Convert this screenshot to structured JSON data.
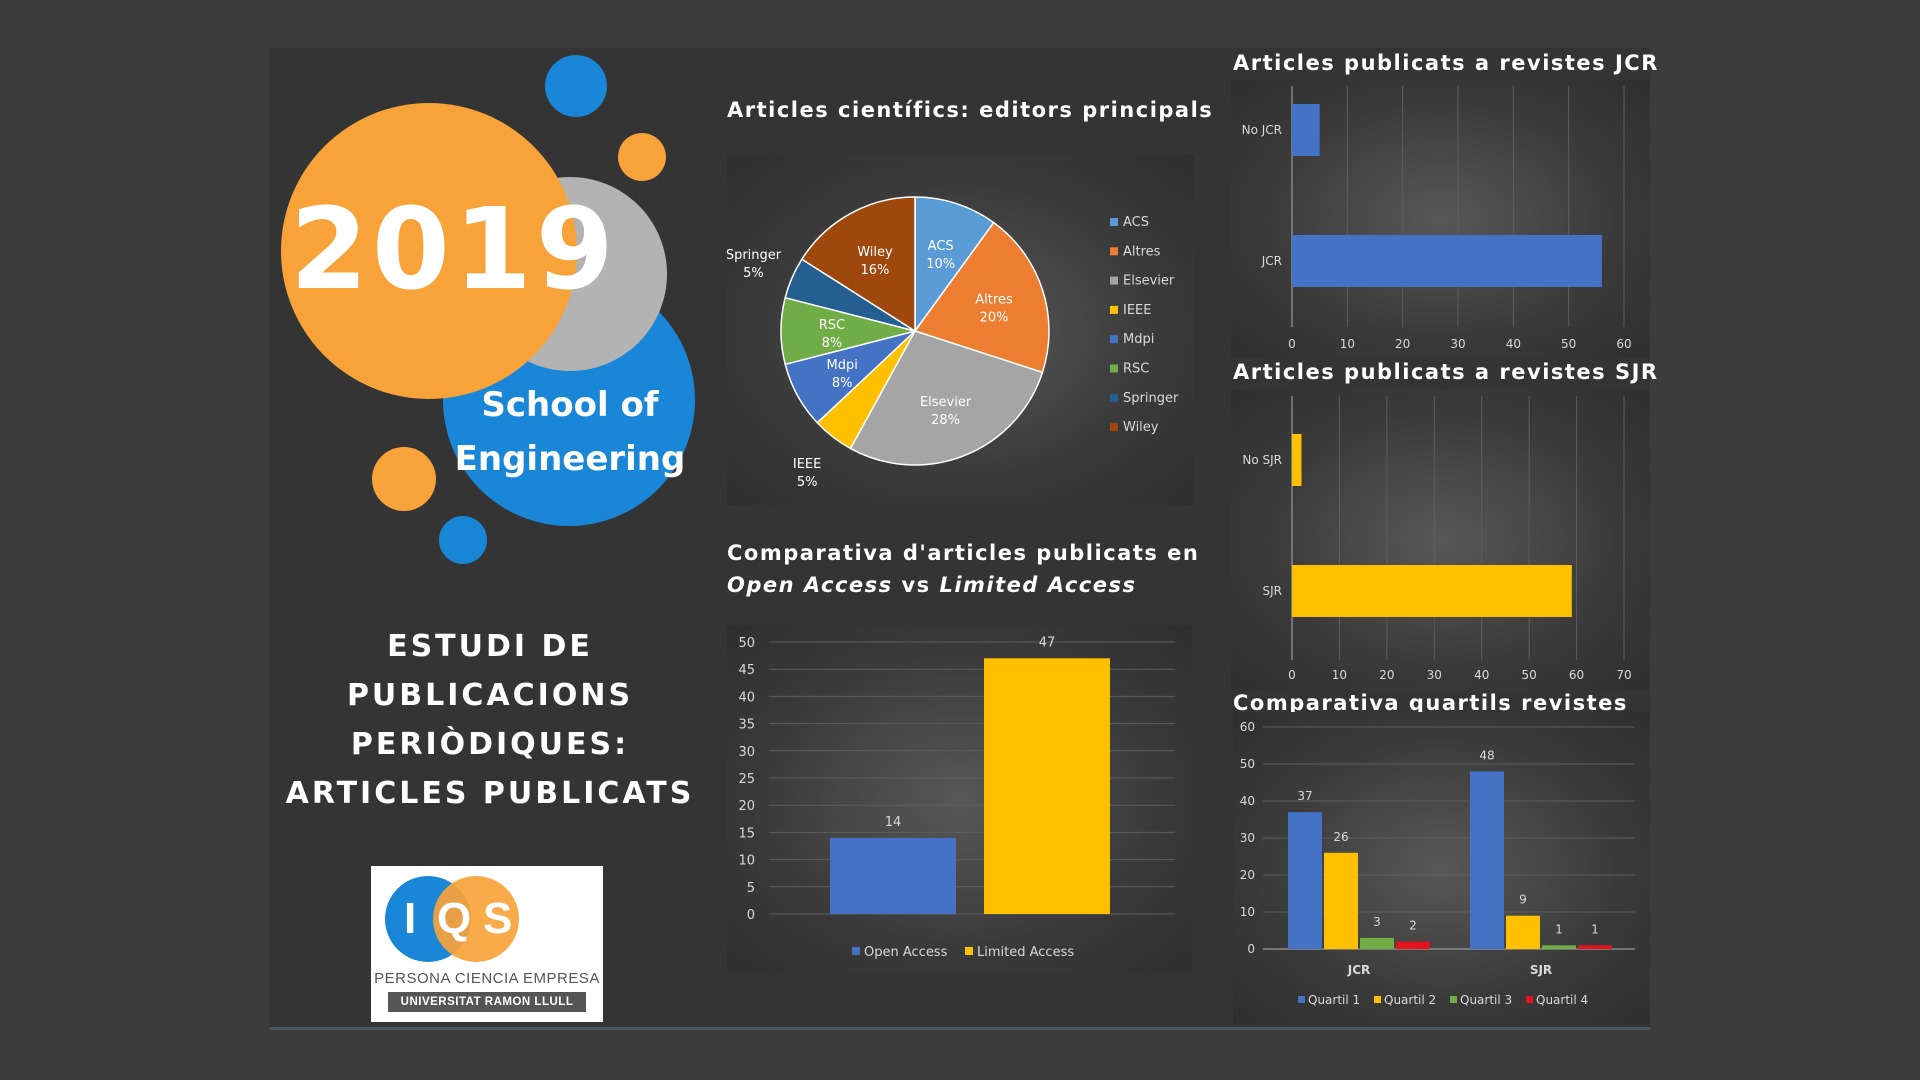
{
  "colors": {
    "blue": "#1a86d8",
    "orange": "#f8a33a",
    "gray": "#b3b3b3",
    "bar_blue": "#4472c4",
    "bar_yellow": "#ffc000",
    "bar_green": "#70ad47",
    "bar_red": "#e3141b"
  },
  "poster": {
    "year": "2019",
    "school_line1": "School of",
    "school_line2": "Engineering",
    "study_lines": [
      "ESTUDI DE",
      "PUBLICACIONS",
      "PERIÒDIQUES:",
      "ARTICLES PUBLICATS"
    ]
  },
  "logo": {
    "letter_i": "I",
    "letter_q": "Q",
    "letter_s": "S",
    "tagline": "PERSONA CIENCIA EMPRESA",
    "university": "UNIVERSITAT RAMON LLULL"
  },
  "titles": {
    "pie": "Articles científics: editors principals",
    "access_line1": "Comparativa d'articles publicats en",
    "access_open": "Open Access",
    "access_vs": " vs ",
    "access_limited": "Limited Access",
    "jcr": "Articles publicats a revistes JCR",
    "sjr": "Articles publicats a revistes SJR",
    "quartiles": "Comparativa quartils revistes"
  },
  "chart_data": [
    {
      "type": "pie",
      "title": "Articles científics: editors principals",
      "labels": [
        "ACS",
        "Altres",
        "Elsevier",
        "IEEE",
        "Mdpi",
        "RSC",
        "Springer",
        "Wiley"
      ],
      "values": [
        10,
        20,
        28,
        5,
        8,
        8,
        5,
        16
      ],
      "value_labels": [
        "10%",
        "20%",
        "28%",
        "5%",
        "8%",
        "8%",
        "5%",
        "16%"
      ],
      "colors": [
        "#5b9bd5",
        "#ed7d31",
        "#a5a5a5",
        "#ffc000",
        "#4472c4",
        "#70ad47",
        "#255e91",
        "#9e480e"
      ],
      "legend": "right"
    },
    {
      "type": "bar",
      "title": "Comparativa d'articles publicats en Open Access vs Limited Access",
      "series": [
        {
          "name": "Open Access",
          "values": [
            14
          ]
        },
        {
          "name": "Limited Access",
          "values": [
            47
          ]
        }
      ],
      "ylim": [
        0,
        50
      ],
      "yticks": [
        "0",
        "5",
        "10",
        "15",
        "20",
        "25",
        "30",
        "35",
        "40",
        "45",
        "50"
      ],
      "data_labels": [
        "14",
        "47"
      ],
      "legend": "bottom",
      "grid": true
    },
    {
      "type": "bar",
      "orientation": "horizontal",
      "title": "Articles publicats a revistes JCR",
      "categories": [
        "No JCR",
        "JCR"
      ],
      "values": [
        5,
        56
      ],
      "xlim": [
        0,
        60
      ],
      "xticks": [
        "0",
        "10",
        "20",
        "30",
        "40",
        "50",
        "60"
      ],
      "grid": true
    },
    {
      "type": "bar",
      "orientation": "horizontal",
      "title": "Articles publicats a revistes SJR",
      "categories": [
        "No SJR",
        "SJR"
      ],
      "values": [
        2,
        59
      ],
      "xlim": [
        0,
        70
      ],
      "xticks": [
        "0",
        "10",
        "20",
        "30",
        "40",
        "50",
        "60",
        "70"
      ],
      "grid": true
    },
    {
      "type": "bar",
      "title": "Comparativa quartils revistes",
      "categories": [
        "JCR",
        "SJR"
      ],
      "series": [
        {
          "name": "Quartil 1",
          "values": [
            37,
            48
          ]
        },
        {
          "name": "Quartil 2",
          "values": [
            26,
            9
          ]
        },
        {
          "name": "Quartil 3",
          "values": [
            3,
            1
          ]
        },
        {
          "name": "Quartil 4",
          "values": [
            2,
            1
          ]
        }
      ],
      "ylim": [
        0,
        60
      ],
      "yticks": [
        "0",
        "10",
        "20",
        "30",
        "40",
        "50",
        "60"
      ],
      "legend": "bottom",
      "grid": true
    }
  ]
}
